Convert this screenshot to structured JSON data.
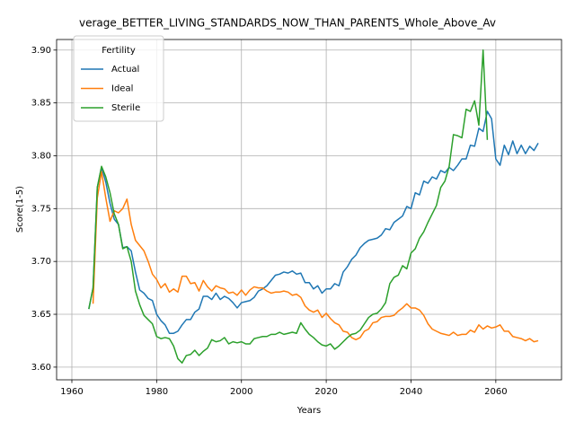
{
  "chart_data": {
    "type": "line",
    "title": "verage_BETTER_LIVING_STANDARDS_NOW_THAN_PARENTS_Whole_Above_Av",
    "x_label": "Years",
    "y_label": "Score(1-5)",
    "legend_title": "Fertility",
    "legend": "upper left",
    "grid": true,
    "xlim": [
      1956.4,
      2075.5
    ],
    "xticks": [
      1960,
      1980,
      2000,
      2020,
      2040,
      2060
    ],
    "ylim": [
      3.588,
      3.91
    ],
    "yticks": [
      {
        "value": 3.6,
        "label": "3.60"
      },
      3.65,
      {
        "value": 3.7,
        "label": "3.70"
      },
      3.75,
      {
        "value": 3.8,
        "label": "3.80"
      },
      3.85,
      {
        "value": 3.9,
        "label": "3.90"
      }
    ],
    "x": [
      1964,
      1965,
      1966,
      1967,
      1968,
      1969,
      1970,
      1971,
      1972,
      1973,
      1974,
      1975,
      1976,
      1977,
      1978,
      1979,
      1980,
      1981,
      1982,
      1983,
      1984,
      1985,
      1986,
      1987,
      1988,
      1989,
      1990,
      1991,
      1992,
      1993,
      1994,
      1995,
      1996,
      1997,
      1998,
      1999,
      2000,
      2001,
      2002,
      2003,
      2004,
      2005,
      2006,
      2007,
      2008,
      2009,
      2010,
      2011,
      2012,
      2013,
      2014,
      2015,
      2016,
      2017,
      2018,
      2019,
      2020,
      2021,
      2022,
      2023,
      2024,
      2025,
      2026,
      2027,
      2028,
      2029,
      2030,
      2031,
      2032,
      2033,
      2034,
      2035,
      2036,
      2037,
      2038,
      2039,
      2040,
      2041,
      2042,
      2043,
      2044,
      2045,
      2046,
      2047,
      2048,
      2049,
      2050,
      2051,
      2052,
      2053,
      2054,
      2055,
      2056,
      2057,
      2058,
      2059,
      2060,
      2061,
      2062,
      2063,
      2064,
      2065,
      2066,
      2067,
      2068,
      2069,
      2070
    ],
    "series": [
      {
        "name": "Actual",
        "color": "#1f77b4",
        "values": [
          3.655,
          3.675,
          3.77,
          3.789,
          3.775,
          3.755,
          3.74,
          3.735,
          3.713,
          3.714,
          3.71,
          3.69,
          3.673,
          3.67,
          3.665,
          3.663,
          3.65,
          3.644,
          3.64,
          3.632,
          3.632,
          3.634,
          3.64,
          3.645,
          3.645,
          3.652,
          3.655,
          3.667,
          3.667,
          3.664,
          3.67,
          3.664,
          3.667,
          3.665,
          3.661,
          3.656,
          3.661,
          3.662,
          3.663,
          3.666,
          3.672,
          3.674,
          3.677,
          3.682,
          3.687,
          3.688,
          3.69,
          3.689,
          3.691,
          3.688,
          3.689,
          3.68,
          3.68,
          3.674,
          3.677,
          3.67,
          3.674,
          3.674,
          3.679,
          3.677,
          3.69,
          3.695,
          3.702,
          3.706,
          3.713,
          3.717,
          3.72,
          3.721,
          3.722,
          3.725,
          3.731,
          3.73,
          3.737,
          3.74,
          3.743,
          3.752,
          3.75,
          3.765,
          3.763,
          3.776,
          3.774,
          3.78,
          3.778,
          3.786,
          3.784,
          3.789,
          3.786,
          3.791,
          3.797,
          3.797,
          3.81,
          3.809,
          3.826,
          3.823,
          3.842,
          3.835,
          3.797,
          3.791,
          3.81,
          3.801,
          3.814,
          3.802,
          3.81,
          3.802,
          3.809,
          3.805,
          3.812
        ]
      },
      {
        "name": "Ideal",
        "color": "#ff7f0e",
        "values": [
          null,
          3.66,
          3.76,
          3.785,
          3.76,
          3.738,
          3.748,
          3.746,
          3.75,
          3.759,
          3.735,
          3.72,
          3.715,
          3.71,
          3.7,
          3.688,
          3.683,
          3.675,
          3.679,
          3.671,
          3.674,
          3.671,
          3.686,
          3.686,
          3.679,
          3.68,
          3.672,
          3.682,
          3.676,
          3.672,
          3.677,
          3.675,
          3.674,
          3.67,
          3.671,
          3.668,
          3.673,
          3.668,
          3.673,
          3.676,
          3.675,
          3.675,
          3.672,
          3.67,
          3.671,
          3.671,
          3.672,
          3.671,
          3.668,
          3.669,
          3.666,
          3.658,
          3.654,
          3.652,
          3.654,
          3.647,
          3.651,
          3.646,
          3.642,
          3.64,
          3.634,
          3.633,
          3.628,
          3.626,
          3.628,
          3.634,
          3.636,
          3.642,
          3.643,
          3.647,
          3.648,
          3.648,
          3.649,
          3.653,
          3.656,
          3.66,
          3.656,
          3.656,
          3.654,
          3.649,
          3.641,
          3.636,
          3.634,
          3.632,
          3.631,
          3.63,
          3.633,
          3.63,
          3.631,
          3.631,
          3.635,
          3.633,
          3.64,
          3.636,
          3.639,
          3.637,
          3.638,
          3.64,
          3.634,
          3.634,
          3.629,
          3.628,
          3.627,
          3.625,
          3.627,
          3.624,
          3.625
        ]
      },
      {
        "name": "Sterile",
        "color": "#2ca02c",
        "values": [
          3.655,
          3.675,
          3.77,
          3.79,
          3.78,
          3.765,
          3.745,
          3.735,
          3.712,
          3.714,
          3.7,
          3.672,
          3.659,
          3.649,
          3.645,
          3.641,
          3.629,
          3.627,
          3.628,
          3.627,
          3.62,
          3.608,
          3.604,
          3.611,
          3.612,
          3.616,
          3.611,
          3.615,
          3.618,
          3.626,
          3.624,
          3.625,
          3.628,
          3.622,
          3.624,
          3.623,
          3.624,
          3.622,
          3.622,
          3.627,
          3.628,
          3.629,
          3.629,
          3.631,
          3.631,
          3.633,
          3.631,
          3.632,
          3.633,
          3.632,
          3.642,
          3.636,
          3.631,
          3.628,
          3.624,
          3.621,
          3.62,
          3.622,
          3.617,
          3.62,
          3.624,
          3.628,
          3.631,
          3.632,
          3.635,
          3.641,
          3.647,
          3.65,
          3.651,
          3.655,
          3.661,
          3.679,
          3.685,
          3.687,
          3.696,
          3.693,
          3.708,
          3.712,
          3.722,
          3.728,
          3.737,
          3.745,
          3.753,
          3.77,
          3.776,
          3.79,
          3.82,
          3.819,
          3.817,
          3.844,
          3.842,
          3.852,
          3.829,
          3.9,
          3.815,
          null,
          null,
          null,
          null,
          null,
          null,
          null,
          null,
          null,
          null,
          null,
          null
        ]
      }
    ]
  }
}
